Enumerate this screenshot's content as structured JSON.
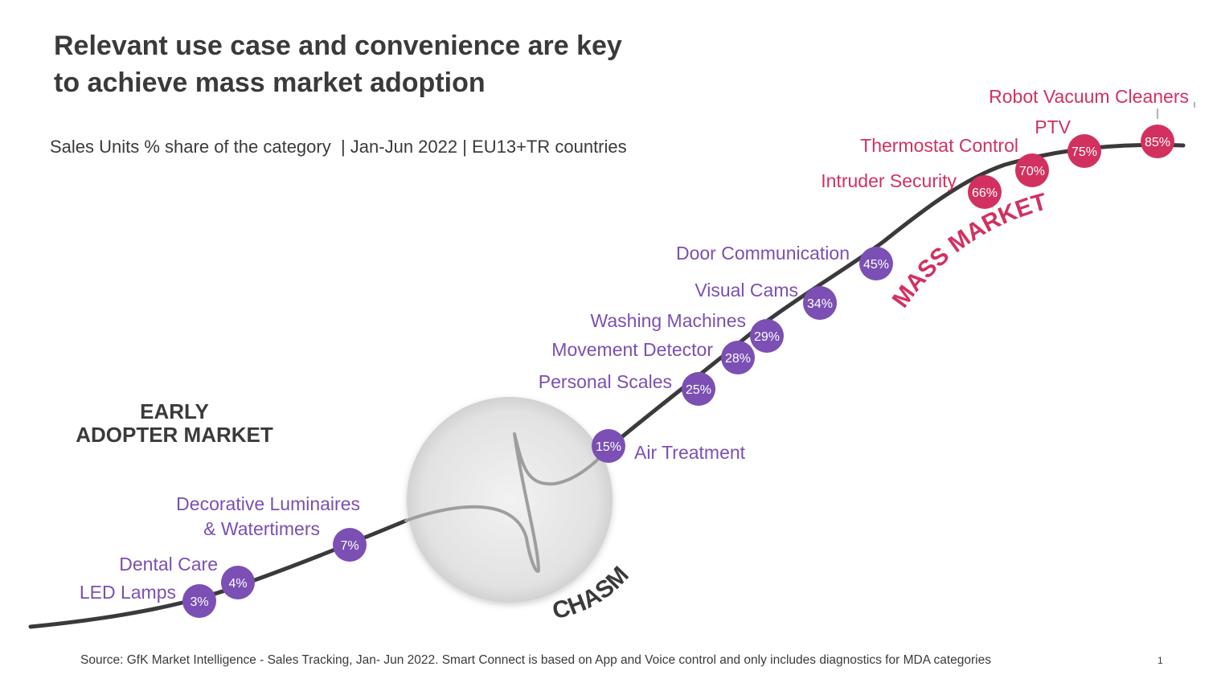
{
  "header": {
    "title_line1": "Relevant use case and convenience are key",
    "title_line2": "to achieve mass market adoption",
    "subtitle": "Sales Units % share of the category  | Jan-Jun 2022 | EU13+TR countries"
  },
  "segments": {
    "early_line1": "EARLY",
    "early_line2": "ADOPTER MARKET",
    "chasm": "CHASM",
    "mass": "MASS MARKET"
  },
  "colors": {
    "purple": "#7b4fb3",
    "pink": "#d2315f",
    "curve": "#3a3a3c",
    "text_dark": "#3a3a3c"
  },
  "categories": [
    {
      "label": "LED Lamps",
      "share": "3%",
      "segment": "early"
    },
    {
      "label": "Dental Care",
      "share": "4%",
      "segment": "early"
    },
    {
      "label_line1": "Decorative Luminaires",
      "label_line2": "& Watertimers",
      "share": "7%",
      "segment": "early"
    },
    {
      "label": "Air Treatment",
      "share": "15%",
      "segment": "early"
    },
    {
      "label": "Personal Scales",
      "share": "25%",
      "segment": "early"
    },
    {
      "label": "Movement Detector",
      "share": "28%",
      "segment": "early"
    },
    {
      "label": "Washing Machines",
      "share": "29%",
      "segment": "early"
    },
    {
      "label": "Visual Cams",
      "share": "34%",
      "segment": "early"
    },
    {
      "label": "Door Communication",
      "share": "45%",
      "segment": "early"
    },
    {
      "label": "Intruder Security",
      "share": "66%",
      "segment": "mass"
    },
    {
      "label": "Thermostat Control",
      "share": "70%",
      "segment": "mass"
    },
    {
      "label": "PTV",
      "share": "75%",
      "segment": "mass"
    },
    {
      "label": "Robot Vacuum Cleaners",
      "share": "85%",
      "segment": "mass"
    }
  ],
  "footer": {
    "source": "Source: GfK Market Intelligence - Sales Tracking, Jan- Jun 2022. Smart Connect is based on App and Voice control and only includes diagnostics for MDA categories",
    "page": "1"
  }
}
